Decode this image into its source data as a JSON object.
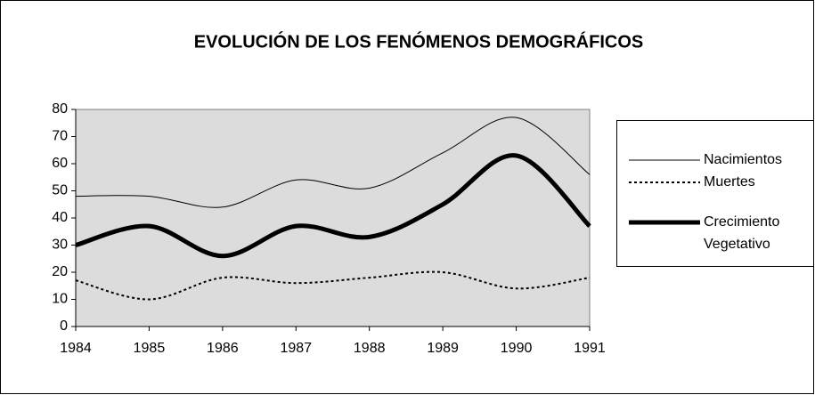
{
  "chart_data": {
    "type": "line",
    "title": "EVOLUCIÓN DE LOS FENÓMENOS DEMOGRÁFICOS",
    "x": [
      1984,
      1985,
      1986,
      1987,
      1988,
      1989,
      1990,
      1991
    ],
    "xlim": [
      1984,
      1991
    ],
    "xticks": [
      1984,
      1985,
      1986,
      1987,
      1988,
      1989,
      1990,
      1991
    ],
    "ylim": [
      0,
      80
    ],
    "yticks": [
      0,
      10,
      20,
      30,
      40,
      50,
      60,
      70,
      80
    ],
    "series": [
      {
        "name": "Nacimientos",
        "color": "#000000",
        "values": [
          48,
          48,
          44,
          54,
          51,
          64,
          77,
          56
        ]
      },
      {
        "name": "Muertes",
        "color": "#000000",
        "values": [
          17,
          10,
          18,
          16,
          18,
          20,
          14,
          18
        ]
      },
      {
        "name": "Crecimiento Vegetativo",
        "color": "#000000",
        "values": [
          30,
          37,
          26,
          37,
          33,
          45,
          63,
          37
        ]
      }
    ],
    "legend": "right"
  }
}
